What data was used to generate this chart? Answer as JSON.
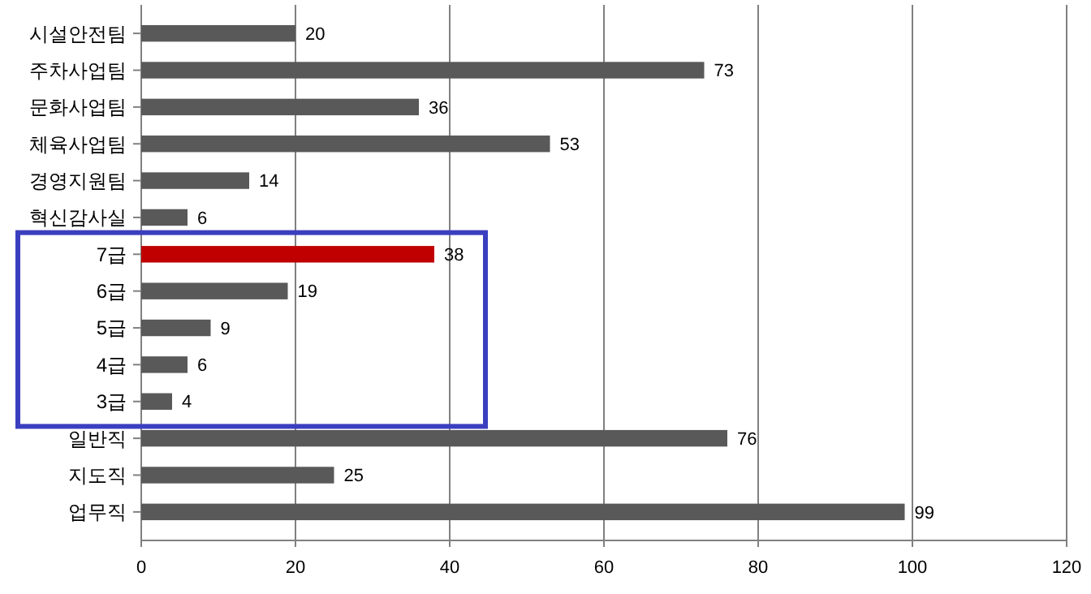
{
  "chart_data": {
    "type": "bar",
    "orientation": "horizontal",
    "categories": [
      "시설안전팀",
      "주차사업팀",
      "문화사업팀",
      "체육사업팀",
      "경영지원팀",
      "혁신감사실",
      "7급",
      "6급",
      "5급",
      "4급",
      "3급",
      "일반직",
      "지도직",
      "업무직"
    ],
    "values": [
      20,
      73,
      36,
      53,
      14,
      6,
      38,
      19,
      9,
      6,
      4,
      76,
      25,
      99
    ],
    "colors": [
      "#595959",
      "#595959",
      "#595959",
      "#595959",
      "#595959",
      "#595959",
      "#c00000",
      "#595959",
      "#595959",
      "#595959",
      "#595959",
      "#595959",
      "#595959",
      "#595959"
    ],
    "xlim": [
      0,
      120
    ],
    "xticks": [
      0,
      20,
      40,
      60,
      80,
      100,
      120
    ],
    "grid": "x",
    "data_labels": true
  }
}
